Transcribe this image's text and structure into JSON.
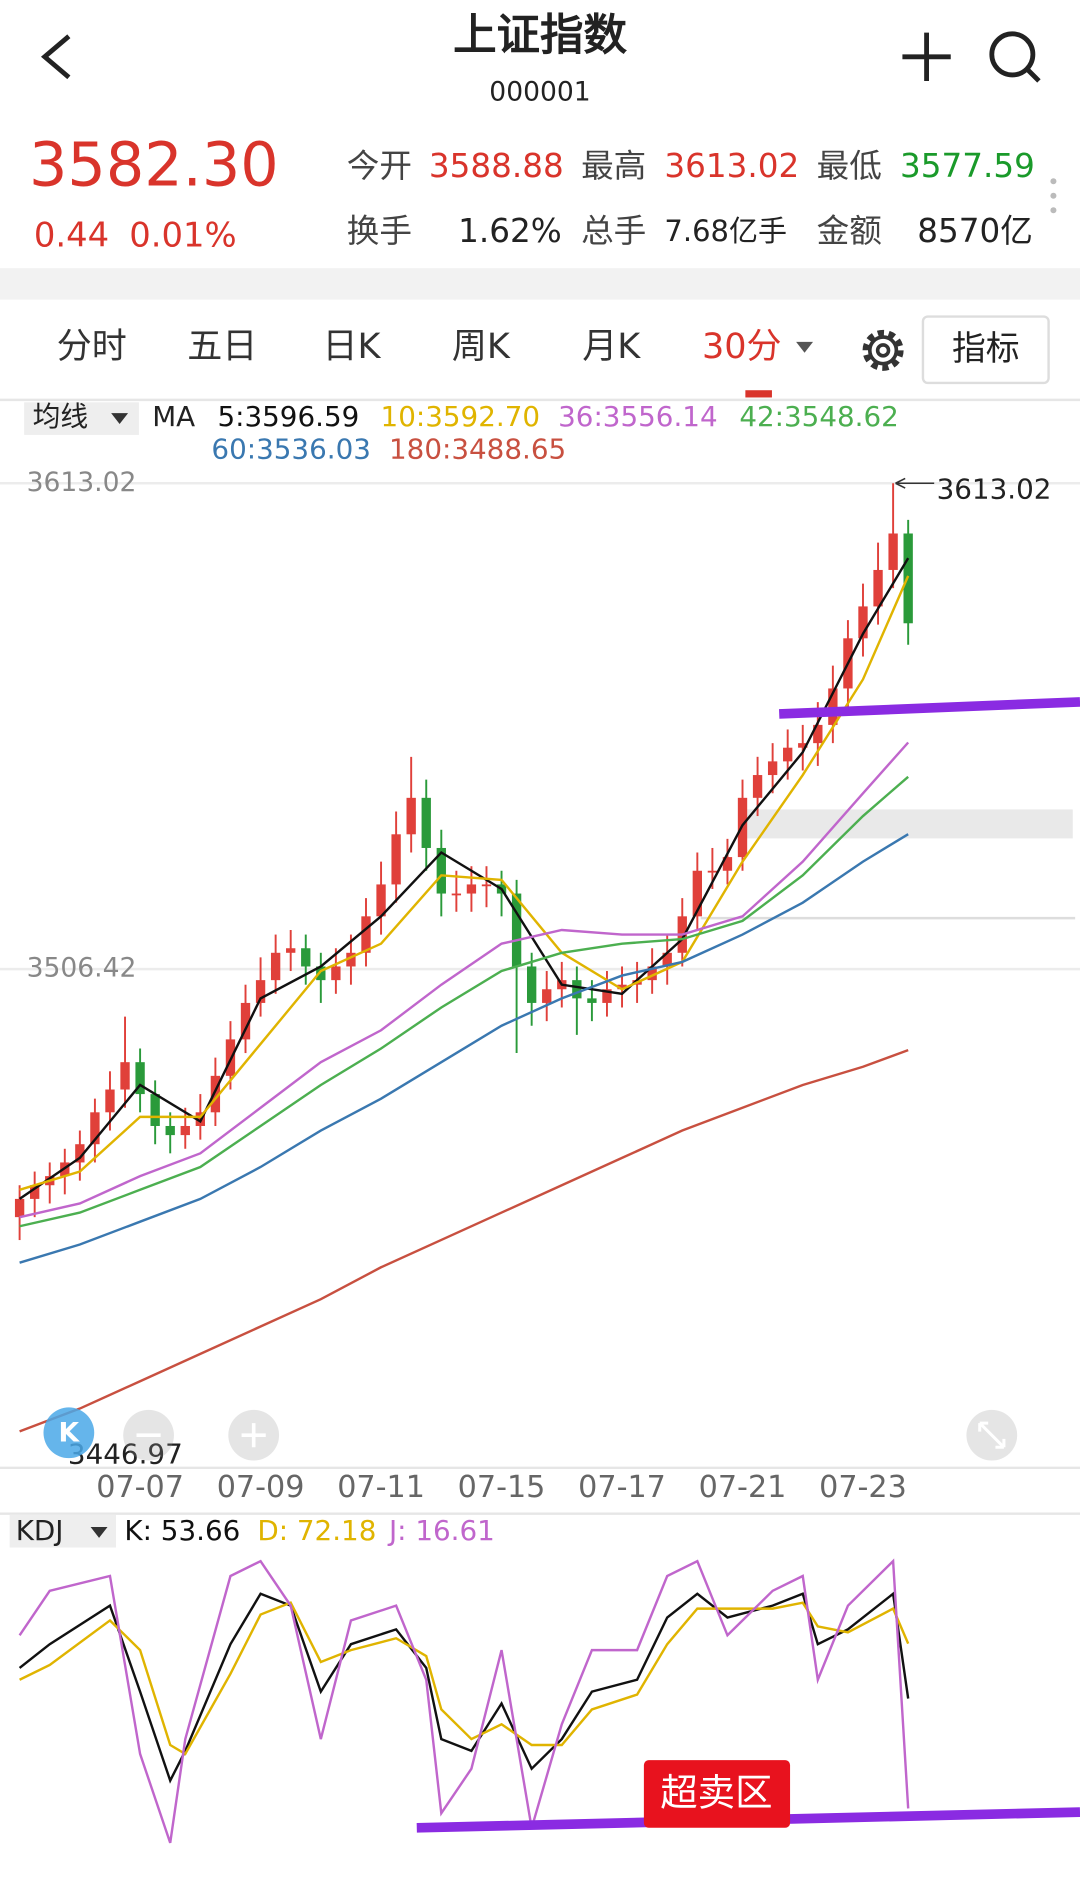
{
  "header": {
    "title": "上证指数",
    "code": "000001"
  },
  "quote": {
    "price": "3582.30",
    "change": "0.44",
    "change_pct": "0.01%",
    "open_label": "今开",
    "open": "3588.88",
    "high_label": "最高",
    "high": "3613.02",
    "low_label": "最低",
    "low": "3577.59",
    "turnover_label": "换手",
    "turnover": "1.62%",
    "volume_label": "总手",
    "volume": "7.68亿手",
    "amount_label": "金额",
    "amount": "8570亿"
  },
  "tabs": [
    "分时",
    "五日",
    "日K",
    "周K",
    "月K",
    "30分"
  ],
  "indicator_button": "指标",
  "chart_data": [
    {
      "type": "candlestick",
      "indicator_label": "均线",
      "ma_label": "MA",
      "categories": [
        null,
        null,
        null,
        null,
        null,
        null,
        null,
        null,
        "07-07",
        null,
        null,
        null,
        null,
        null,
        null,
        null,
        "07-09",
        null,
        null,
        null,
        null,
        null,
        null,
        null,
        "07-11",
        null,
        null,
        null,
        null,
        null,
        null,
        null,
        "07-15",
        null,
        null,
        null,
        null,
        null,
        null,
        null,
        "07-17",
        null,
        null,
        null,
        null,
        null,
        null,
        null,
        "07-21",
        null,
        null,
        null,
        null,
        null,
        null,
        null,
        "07-23",
        null,
        null,
        null
      ],
      "open": [
        3452,
        3456,
        3459,
        3461,
        3464,
        3468,
        3475,
        3480,
        3486,
        3479,
        3472,
        3470,
        3472,
        3475,
        3483,
        3491,
        3499,
        3504,
        3510,
        3511,
        3507,
        3504,
        3507,
        3510,
        3518,
        3525,
        3536,
        3544,
        3533,
        3523,
        3523,
        3525,
        3525,
        3523,
        3507,
        3499,
        3502,
        3504,
        3500,
        3499,
        3502,
        3503,
        3504,
        3507,
        3510,
        3518,
        3528,
        3528,
        3531,
        3544,
        3549,
        3552,
        3555,
        3556,
        3560,
        3568,
        3579,
        3586,
        3594,
        3602
      ],
      "high": [
        3459,
        3462,
        3464,
        3467,
        3471,
        3478,
        3484,
        3496,
        3489,
        3482,
        3475,
        3476,
        3479,
        3487,
        3495,
        3503,
        3509,
        3514,
        3515,
        3514,
        3510,
        3511,
        3514,
        3522,
        3530,
        3541,
        3553,
        3548,
        3537,
        3528,
        3529,
        3529,
        3528,
        3526,
        3510,
        3506,
        3508,
        3507,
        3504,
        3506,
        3507,
        3508,
        3511,
        3514,
        3522,
        3532,
        3533,
        3535,
        3548,
        3553,
        3556,
        3559,
        3560,
        3565,
        3573,
        3583,
        3591,
        3600,
        3613.02,
        3605
      ],
      "low": [
        3446.97,
        3452,
        3455,
        3457,
        3460,
        3464,
        3471,
        3476,
        3475,
        3468,
        3466,
        3467,
        3469,
        3472,
        3480,
        3488,
        3496,
        3501,
        3506,
        3503,
        3499,
        3501,
        3503,
        3507,
        3514,
        3521,
        3532,
        3528,
        3518,
        3519,
        3519,
        3520,
        3518,
        3488,
        3494,
        3495,
        3498,
        3492,
        3495,
        3496,
        3498,
        3499,
        3501,
        3503,
        3507,
        3515,
        3524,
        3525,
        3528,
        3540,
        3545,
        3548,
        3550,
        3551,
        3556,
        3564,
        3575,
        3582,
        3590,
        3577.59
      ],
      "close": [
        3456,
        3459,
        3461,
        3464,
        3468,
        3475,
        3480,
        3486,
        3479,
        3472,
        3470,
        3472,
        3475,
        3483,
        3491,
        3499,
        3504,
        3510,
        3511,
        3507,
        3504,
        3507,
        3510,
        3518,
        3525,
        3536,
        3544,
        3533,
        3523,
        3523,
        3525,
        3525,
        3523,
        3507,
        3499,
        3502,
        3504,
        3500,
        3499,
        3502,
        3503,
        3504,
        3507,
        3510,
        3518,
        3528,
        3528,
        3531,
        3544,
        3549,
        3552,
        3555,
        3556,
        3560,
        3568,
        3579,
        3586,
        3594,
        3602,
        3582.3
      ],
      "up_color": "#e0403a",
      "down_color": "#2a9a3a",
      "xlim": [
        -0.5,
        59.5
      ],
      "ylim": [
        3397,
        3617
      ],
      "yticks": [
        3506.42,
        3613.02
      ],
      "grid": true,
      "high_marker": "3613.02",
      "low_marker": "3446.97",
      "x": [
        0,
        4,
        8,
        12,
        16,
        20,
        24,
        28,
        32,
        36,
        40,
        44,
        48,
        52,
        56,
        59
      ],
      "series": [
        {
          "name": "5:3596.59",
          "color": "#111111",
          "values": [
            3456,
            3465,
            3481,
            3473,
            3500,
            3507,
            3518,
            3532,
            3524,
            3503,
            3501,
            3513,
            3538,
            3554,
            3580,
            3596.59
          ]
        },
        {
          "name": "10:3592.70",
          "color": "#e0b400",
          "values": [
            3458,
            3462,
            3474,
            3474,
            3490,
            3506,
            3512,
            3527,
            3526,
            3510,
            3502,
            3508,
            3530,
            3549,
            3570,
            3592.7
          ]
        },
        {
          "name": "36:3556.14",
          "color": "#c066cc",
          "values": [
            3452,
            3455,
            3461,
            3466,
            3476,
            3486,
            3493,
            3503,
            3512,
            3515,
            3514,
            3514,
            3518,
            3530,
            3545,
            3556.14
          ]
        },
        {
          "name": "42:3548.62",
          "color": "#4caf50",
          "values": [
            3450,
            3453,
            3458,
            3463,
            3472,
            3481,
            3489,
            3498,
            3506,
            3510,
            3512,
            3513,
            3517,
            3527,
            3540,
            3548.62
          ]
        },
        {
          "name": "60:3536.03",
          "color": "#3a78b0",
          "values": [
            3442,
            3446,
            3451,
            3456,
            3463,
            3471,
            3478,
            3486,
            3494,
            3500,
            3505,
            3508,
            3514,
            3521,
            3530,
            3536.03
          ]
        },
        {
          "name": "180:3488.65",
          "color": "#c85040",
          "values": [
            3405,
            3410,
            3416,
            3422,
            3428,
            3434,
            3441,
            3447,
            3453,
            3459,
            3465,
            3471,
            3476,
            3481,
            3485,
            3488.65
          ]
        }
      ]
    },
    {
      "type": "line",
      "title": "KDJ",
      "annotation": "超卖区",
      "x": [
        0,
        2,
        6,
        8,
        10,
        11,
        14,
        16,
        18,
        20,
        22,
        25,
        27,
        28,
        30,
        32,
        34,
        36,
        38,
        41,
        43,
        45,
        47,
        50,
        52,
        53,
        55,
        58,
        59
      ],
      "xlim": [
        -0.5,
        59.5
      ],
      "ylim": [
        -5,
        105
      ],
      "series": [
        {
          "name": "K: 53.66",
          "color": "#111111",
          "values": [
            64,
            72,
            85,
            56,
            26,
            36,
            72,
            89,
            85,
            56,
            72,
            77,
            64,
            40,
            36,
            52,
            30,
            40,
            56,
            60,
            81,
            89,
            81,
            85,
            89,
            72,
            77,
            89,
            53.66
          ]
        },
        {
          "name": "D: 72.18",
          "color": "#e0b400",
          "values": [
            60,
            65,
            80,
            70,
            38,
            35,
            62,
            82,
            86,
            66,
            70,
            74,
            68,
            50,
            40,
            45,
            38,
            38,
            50,
            55,
            72,
            84,
            84,
            84,
            86,
            78,
            76,
            84,
            72.18
          ]
        },
        {
          "name": "J: 16.61",
          "color": "#c066cc",
          "values": [
            75,
            90,
            95,
            35,
            5,
            40,
            95,
            100,
            85,
            40,
            80,
            85,
            60,
            15,
            30,
            70,
            10,
            45,
            70,
            70,
            95,
            100,
            75,
            90,
            95,
            60,
            85,
            100,
            16.61
          ]
        }
      ]
    }
  ]
}
